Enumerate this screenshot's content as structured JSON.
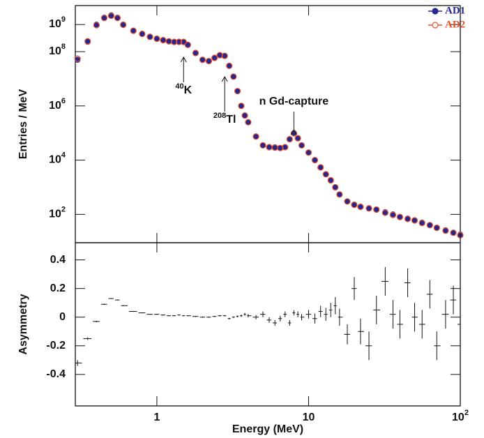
{
  "chart_data": [
    {
      "type": "scatter",
      "ylabel": "Entries / MeV",
      "log_x": true,
      "log_y": true,
      "xlim": [
        0.29,
        100
      ],
      "ylim": [
        9,
        5000000000
      ],
      "yticks": [
        {
          "value": 100,
          "label": "10",
          "exponent": "2"
        },
        {
          "value": 10000,
          "label": "10",
          "exponent": "4"
        },
        {
          "value": 1000000,
          "label": "10",
          "exponent": "6"
        },
        {
          "value": 100000000,
          "label": "10",
          "exponent": "8"
        },
        {
          "value": 1000000000,
          "label": "10",
          "exponent": "9"
        }
      ],
      "legend": "top-right",
      "x": [
        0.3,
        0.35,
        0.4,
        0.45,
        0.5,
        0.55,
        0.6,
        0.7,
        0.8,
        0.9,
        1.0,
        1.1,
        1.2,
        1.3,
        1.4,
        1.5,
        1.6,
        1.8,
        2.0,
        2.2,
        2.4,
        2.6,
        2.8,
        3.0,
        3.2,
        3.4,
        3.6,
        3.8,
        4.0,
        4.5,
        5.0,
        5.5,
        6.0,
        6.5,
        7.0,
        7.5,
        8.0,
        8.5,
        9.0,
        10,
        11,
        12,
        13,
        14,
        15,
        16,
        18,
        20,
        22,
        25,
        28,
        32,
        36,
        40,
        45,
        50,
        56,
        63,
        70,
        80,
        90,
        100
      ],
      "series": [
        {
          "name": "AD1",
          "color": "#26268f",
          "marker": "filled",
          "values": [
            50000000,
            230000000,
            1000000000,
            1800000000,
            2200000000,
            1800000000,
            1000000000,
            600000000,
            460000000,
            360000000,
            300000000,
            270000000,
            240000000,
            230000000,
            230000000,
            230000000,
            180000000,
            90000000,
            50000000,
            45000000,
            60000000,
            75000000,
            70000000,
            30000000,
            12000000,
            3500000,
            1000000,
            450000,
            250000,
            75000,
            35000,
            30000,
            30000,
            28000,
            30000,
            60000,
            100000,
            65000,
            35000,
            19000,
            10000,
            5500,
            3000,
            1800,
            1000,
            550,
            300,
            230,
            190,
            170,
            150,
            120,
            100,
            80,
            70,
            60,
            50,
            40,
            32,
            26,
            21,
            18
          ]
        },
        {
          "name": "AD2",
          "color": "#e8502a",
          "marker": "open",
          "values": [
            55000000,
            240000000,
            950000000,
            1750000000,
            2100000000,
            1750000000,
            980000000,
            590000000,
            450000000,
            350000000,
            300000000,
            265000000,
            240000000,
            228000000,
            230000000,
            228000000,
            178000000,
            89000000,
            50000000,
            45000000,
            59000000,
            74000000,
            70000000,
            30000000,
            12000000,
            3500000,
            1000000,
            440000,
            250000,
            74000,
            35000,
            30000,
            29000,
            28000,
            30000,
            59000,
            98000,
            64000,
            35000,
            19000,
            10000,
            5400,
            3000,
            1800,
            1000,
            540,
            300,
            225,
            190,
            165,
            150,
            115,
            95,
            80,
            68,
            60,
            48,
            40,
            32,
            25,
            21,
            17
          ]
        }
      ],
      "annotations": [
        {
          "exponent": "40",
          "label": "K",
          "x": 1.5
        },
        {
          "exponent": "208",
          "label": "Tl",
          "x": 2.8
        },
        {
          "label": "n Gd-capture",
          "x": 8.0
        }
      ]
    },
    {
      "type": "errorbar",
      "ylabel": "Asymmetry",
      "xlabel": "Energy (MeV)",
      "log_x": true,
      "xlim": [
        0.29,
        100
      ],
      "ylim": [
        -0.62,
        0.52
      ],
      "xticks": [
        1,
        10,
        {
          "value": 100,
          "label": "10",
          "exponent": "2"
        }
      ],
      "yticks": [
        -0.4,
        -0.2,
        0,
        0.2,
        0.4
      ],
      "color": "#111111",
      "x": [
        0.3,
        0.35,
        0.4,
        0.45,
        0.5,
        0.55,
        0.6,
        0.7,
        0.8,
        0.9,
        1.0,
        1.1,
        1.2,
        1.3,
        1.4,
        1.5,
        1.6,
        1.8,
        2.0,
        2.2,
        2.4,
        2.6,
        2.8,
        3.0,
        3.2,
        3.4,
        3.6,
        3.8,
        4.0,
        4.5,
        5.0,
        5.5,
        6.0,
        6.5,
        7.0,
        7.5,
        8.0,
        8.5,
        9.0,
        10,
        11,
        12,
        13,
        14,
        15,
        16,
        18,
        20,
        22,
        25,
        28,
        32,
        36,
        40,
        45,
        50,
        56,
        63,
        70,
        80,
        90,
        100
      ],
      "values": [
        -0.32,
        -0.15,
        -0.03,
        0.09,
        0.13,
        0.12,
        0.08,
        0.04,
        0.03,
        0.02,
        0.02,
        0.015,
        0.01,
        0.01,
        0.015,
        0.01,
        0.01,
        0.005,
        0.0,
        0.0,
        0.005,
        0.01,
        0.01,
        -0.01,
        0.0,
        0.005,
        0.01,
        0.02,
        0.01,
        0.0,
        0.02,
        -0.02,
        -0.04,
        -0.01,
        0.02,
        -0.04,
        0.03,
        0.02,
        0.0,
        0.02,
        -0.01,
        0.04,
        0.02,
        0.05,
        0.08,
        0.0,
        -0.12,
        0.2,
        -0.1,
        -0.2,
        0.05,
        0.25,
        0.02,
        -0.05,
        0.24,
        0.0,
        -0.05,
        0.16,
        -0.2,
        0.02,
        0.12,
        -0.05
      ],
      "errors": [
        0.02,
        0.01,
        0.005,
        0.004,
        0.003,
        0.003,
        0.003,
        0.003,
        0.003,
        0.003,
        0.003,
        0.003,
        0.003,
        0.003,
        0.003,
        0.003,
        0.003,
        0.004,
        0.004,
        0.004,
        0.004,
        0.004,
        0.004,
        0.005,
        0.005,
        0.006,
        0.008,
        0.01,
        0.012,
        0.015,
        0.02,
        0.02,
        0.02,
        0.02,
        0.02,
        0.02,
        0.018,
        0.02,
        0.022,
        0.03,
        0.035,
        0.04,
        0.045,
        0.05,
        0.06,
        0.06,
        0.07,
        0.08,
        0.09,
        0.1,
        0.1,
        0.1,
        0.1,
        0.1,
        0.1,
        0.1,
        0.1,
        0.1,
        0.1,
        0.1,
        0.1,
        0.1
      ]
    }
  ]
}
